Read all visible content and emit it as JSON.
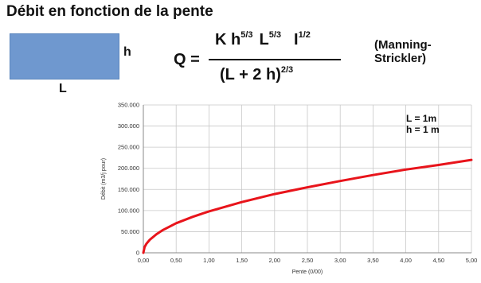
{
  "title": "Débit en fonction de la pente",
  "diagram": {
    "h_label": "h",
    "l_label": "L",
    "rect_color": "#6f98cf"
  },
  "formula": {
    "lhs": "Q =",
    "num_k": "K h",
    "num_k_exp": "5/3",
    "num_l": "L",
    "num_l_exp": "5/3",
    "num_i": "I",
    "num_i_exp": "1/2",
    "den": "(L + 2 h)",
    "den_exp": "2/3",
    "name_line1": "(Manning-",
    "name_line2": "Strickler)"
  },
  "chart_data": {
    "type": "line",
    "xlabel": "Pente (0/00)",
    "ylabel": "Débit (m3/j pour)",
    "xlim": [
      0,
      5
    ],
    "ylim": [
      0,
      350000
    ],
    "x_ticks": [
      "0,00",
      "0,50",
      "1,00",
      "1,50",
      "2,00",
      "2,50",
      "3,00",
      "3,50",
      "4,00",
      "4,50",
      "5,00"
    ],
    "y_ticks": [
      "0",
      "50.000",
      "100.000",
      "150.000",
      "200.000",
      "250.000",
      "300.000",
      "350.000"
    ],
    "annotations": [
      "L = 1m",
      "h = 1 m"
    ],
    "grid": true,
    "series": [
      {
        "color": "#e8141b",
        "x": [
          0,
          0.02,
          0.05,
          0.1,
          0.2,
          0.3,
          0.5,
          0.75,
          1.0,
          1.5,
          2.0,
          2.5,
          3.0,
          3.5,
          4.0,
          4.5,
          5.0
        ],
        "y": [
          0,
          13900,
          22000,
          31000,
          44000,
          54000,
          70000,
          85000,
          98000,
          120000,
          139000,
          155000,
          170000,
          184000,
          197000,
          208000,
          220000
        ]
      }
    ]
  }
}
